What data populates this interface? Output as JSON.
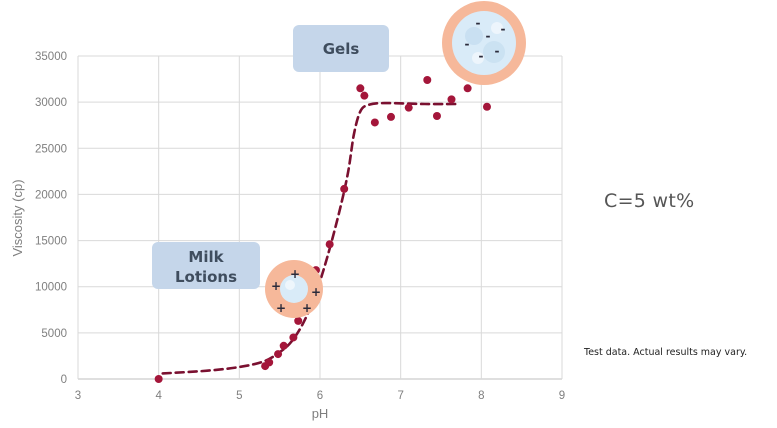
{
  "chart_data": {
    "type": "scatter",
    "title": "",
    "xlabel": "pH",
    "ylabel": "Viscosity (cp)",
    "xlim": [
      3,
      9
    ],
    "ylim": [
      0,
      35000
    ],
    "x_ticks": [
      3,
      4,
      5,
      6,
      7,
      8,
      9
    ],
    "y_ticks": [
      0,
      5000,
      10000,
      15000,
      20000,
      25000,
      30000,
      35000
    ],
    "grid": true,
    "series": [
      {
        "type": "scatter",
        "color": "#a4163a",
        "points": [
          [
            4.0,
            0
          ],
          [
            5.32,
            1400
          ],
          [
            5.37,
            1800
          ],
          [
            5.48,
            2700
          ],
          [
            5.55,
            3600
          ],
          [
            5.67,
            4500
          ],
          [
            5.73,
            6300
          ],
          [
            5.95,
            11800
          ],
          [
            6.12,
            14600
          ],
          [
            6.3,
            20600
          ],
          [
            6.5,
            31500
          ],
          [
            6.55,
            30700
          ],
          [
            6.68,
            27800
          ],
          [
            6.88,
            28400
          ],
          [
            7.1,
            29400
          ],
          [
            7.33,
            32400
          ],
          [
            7.45,
            28500
          ],
          [
            7.63,
            30300
          ],
          [
            7.83,
            31500
          ],
          [
            8.07,
            29500
          ]
        ]
      },
      {
        "type": "line",
        "style": "dashed",
        "color": "#7a1030",
        "points": [
          [
            4.05,
            600
          ],
          [
            4.6,
            900
          ],
          [
            5.0,
            1300
          ],
          [
            5.3,
            1900
          ],
          [
            5.5,
            2900
          ],
          [
            5.65,
            4100
          ],
          [
            5.8,
            6200
          ],
          [
            5.95,
            9300
          ],
          [
            6.1,
            13500
          ],
          [
            6.25,
            18500
          ],
          [
            6.35,
            22500
          ],
          [
            6.42,
            26500
          ],
          [
            6.5,
            29000
          ],
          [
            6.6,
            29700
          ],
          [
            6.8,
            29900
          ],
          [
            7.3,
            29800
          ],
          [
            7.7,
            29800
          ]
        ]
      }
    ],
    "annotations": [
      {
        "text": "Gels",
        "color": "#c5d6ea"
      },
      {
        "text": "Milk Lotions",
        "line1": "Milk",
        "line2": "Lotions",
        "color": "#c5d6ea"
      }
    ]
  },
  "concentration": "C=5 wt%",
  "note": "Test data. Actual results may vary.",
  "particle_icons": [
    {
      "name": "gel-particle",
      "charge": "-",
      "ring_color": "#f6b89a"
    },
    {
      "name": "lotion-particle",
      "charge": "+",
      "ring_color": "#f6b89a"
    }
  ]
}
